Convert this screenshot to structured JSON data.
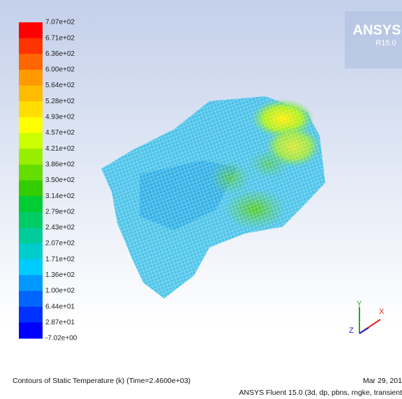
{
  "header": {
    "brand": "ANSYS",
    "version": "R15.0"
  },
  "colorbar": {
    "labels": [
      "7.07e+02",
      "6.71e+02",
      "6.36e+02",
      "6.00e+02",
      "5.64e+02",
      "5.28e+02",
      "4.93e+02",
      "4.57e+02",
      "4.21e+02",
      "3.86e+02",
      "3.50e+02",
      "3.14e+02",
      "2.79e+02",
      "2.43e+02",
      "2.07e+02",
      "1.71e+02",
      "1.36e+02",
      "1.00e+02",
      "6.44e+01",
      "2.87e+01",
      "-7.02e+00"
    ],
    "colors": [
      "#ff0000",
      "#ff3300",
      "#ff6600",
      "#ff9900",
      "#ffbb00",
      "#ffdd00",
      "#ffff00",
      "#ccff00",
      "#99ee00",
      "#66dd00",
      "#33cc00",
      "#00cc33",
      "#00cc66",
      "#00cc99",
      "#00cccc",
      "#00ccff",
      "#0099ff",
      "#0066ff",
      "#0033ff",
      "#0000ff"
    ]
  },
  "axes_triad": {
    "x": "X",
    "y": "Y",
    "z": "Z"
  },
  "footer": {
    "caption": "Contours of Static Temperature (k)  (Time=2.4600e+03)",
    "date": "Mar 29, 201",
    "solver": "ANSYS Fluent 15.0 (3d, dp, pbns, rngke, transient"
  }
}
